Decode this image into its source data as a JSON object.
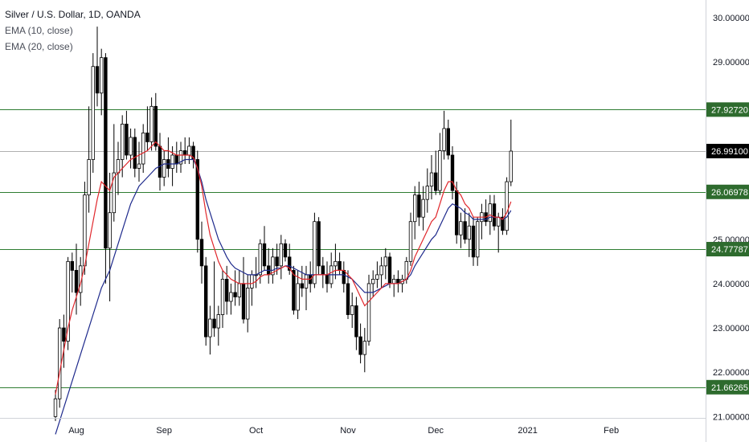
{
  "legend": {
    "title": "Silver / U.S. Dollar, 1D, OANDA",
    "ema10": "EMA (10, close)",
    "ema20": "EMA (20, close)"
  },
  "colors": {
    "up_fill": "#ffffff",
    "down_fill": "#000000",
    "candle_border": "#000000",
    "ema10": "#e0262b",
    "ema20": "#1e2a8c",
    "sr_line": "#2e7d32",
    "price_line": "#b0b0b0",
    "axis_text": "#131722",
    "label_green_bg": "#2e6b2e",
    "label_dark_bg": "#000000"
  },
  "chart_data": {
    "type": "candlestick",
    "symbol": "Silver / U.S. Dollar, 1D, OANDA",
    "indicators": [
      "EMA (10, close)",
      "EMA (20, close)"
    ],
    "ylim": [
      20.97,
      30.4
    ],
    "y_ticks": [
      "30.00000",
      "29.00000",
      "28.00000",
      "27.00000",
      "26.00000",
      "25.00000",
      "24.00000",
      "23.00000",
      "22.00000",
      "21.00000"
    ],
    "x_ticks": [
      {
        "label": "Aug",
        "index": 5
      },
      {
        "label": "Sep",
        "index": 26
      },
      {
        "label": "Oct",
        "index": 48
      },
      {
        "label": "Nov",
        "index": 70
      },
      {
        "label": "Dec",
        "index": 91
      },
      {
        "label": "2021",
        "index": 113
      },
      {
        "label": "Feb",
        "index": 133
      }
    ],
    "horizontal_levels": [
      {
        "value": 27.9272,
        "label": "27.92720",
        "style": "support-resistance"
      },
      {
        "value": 26.991,
        "label": "26.99100",
        "style": "last-price"
      },
      {
        "value": 26.06978,
        "label": "26.06978",
        "style": "support-resistance"
      },
      {
        "value": 24.77787,
        "label": "24.77787",
        "style": "support-resistance"
      },
      {
        "value": 21.66265,
        "label": "21.66265",
        "style": "support-resistance"
      }
    ],
    "candles": [
      {
        "o": 21.0,
        "h": 21.6,
        "l": 20.9,
        "c": 21.4
      },
      {
        "o": 21.4,
        "h": 23.2,
        "l": 21.2,
        "c": 23.0
      },
      {
        "o": 23.0,
        "h": 23.3,
        "l": 22.1,
        "c": 22.7
      },
      {
        "o": 22.7,
        "h": 24.6,
        "l": 22.5,
        "c": 24.5
      },
      {
        "o": 24.5,
        "h": 24.7,
        "l": 23.8,
        "c": 24.3
      },
      {
        "o": 24.3,
        "h": 24.9,
        "l": 23.3,
        "c": 23.8
      },
      {
        "o": 23.8,
        "h": 24.6,
        "l": 23.5,
        "c": 24.4
      },
      {
        "o": 24.4,
        "h": 26.3,
        "l": 24.2,
        "c": 26.0
      },
      {
        "o": 26.0,
        "h": 28.0,
        "l": 25.6,
        "c": 26.8
      },
      {
        "o": 26.8,
        "h": 29.2,
        "l": 26.5,
        "c": 28.9
      },
      {
        "o": 28.9,
        "h": 29.8,
        "l": 28.0,
        "c": 28.3
      },
      {
        "o": 28.3,
        "h": 29.3,
        "l": 27.8,
        "c": 29.1
      },
      {
        "o": 29.1,
        "h": 29.2,
        "l": 24.0,
        "c": 24.8
      },
      {
        "o": 24.8,
        "h": 26.5,
        "l": 23.6,
        "c": 25.6
      },
      {
        "o": 25.6,
        "h": 27.6,
        "l": 25.4,
        "c": 26.5
      },
      {
        "o": 26.5,
        "h": 27.2,
        "l": 26.0,
        "c": 26.8
      },
      {
        "o": 26.8,
        "h": 27.8,
        "l": 26.4,
        "c": 27.6
      },
      {
        "o": 27.6,
        "h": 27.9,
        "l": 26.8,
        "c": 26.9
      },
      {
        "o": 26.9,
        "h": 27.5,
        "l": 26.6,
        "c": 27.3
      },
      {
        "o": 27.3,
        "h": 27.5,
        "l": 26.4,
        "c": 26.6
      },
      {
        "o": 26.6,
        "h": 27.2,
        "l": 26.3,
        "c": 26.7
      },
      {
        "o": 26.7,
        "h": 27.6,
        "l": 26.5,
        "c": 27.4
      },
      {
        "o": 27.4,
        "h": 28.0,
        "l": 27.0,
        "c": 27.2
      },
      {
        "o": 27.2,
        "h": 28.2,
        "l": 27.0,
        "c": 28.0
      },
      {
        "o": 28.0,
        "h": 28.3,
        "l": 27.0,
        "c": 27.1
      },
      {
        "o": 27.1,
        "h": 27.4,
        "l": 26.1,
        "c": 26.4
      },
      {
        "o": 26.4,
        "h": 27.0,
        "l": 26.2,
        "c": 26.8
      },
      {
        "o": 26.8,
        "h": 27.3,
        "l": 26.4,
        "c": 26.6
      },
      {
        "o": 26.6,
        "h": 27.1,
        "l": 26.2,
        "c": 26.9
      },
      {
        "o": 26.9,
        "h": 27.2,
        "l": 26.5,
        "c": 26.7
      },
      {
        "o": 26.7,
        "h": 27.2,
        "l": 26.5,
        "c": 27.0
      },
      {
        "o": 27.0,
        "h": 27.3,
        "l": 26.7,
        "c": 26.9
      },
      {
        "o": 26.9,
        "h": 27.3,
        "l": 26.7,
        "c": 27.1
      },
      {
        "o": 27.1,
        "h": 27.2,
        "l": 26.6,
        "c": 26.8
      },
      {
        "o": 26.8,
        "h": 27.0,
        "l": 24.7,
        "c": 25.0
      },
      {
        "o": 25.0,
        "h": 25.4,
        "l": 24.0,
        "c": 24.4
      },
      {
        "o": 24.4,
        "h": 24.6,
        "l": 22.6,
        "c": 22.8
      },
      {
        "o": 22.8,
        "h": 23.5,
        "l": 22.4,
        "c": 23.2
      },
      {
        "o": 23.2,
        "h": 24.5,
        "l": 22.8,
        "c": 23.0
      },
      {
        "o": 23.0,
        "h": 23.5,
        "l": 22.6,
        "c": 23.3
      },
      {
        "o": 23.3,
        "h": 24.3,
        "l": 23.0,
        "c": 24.1
      },
      {
        "o": 24.1,
        "h": 24.4,
        "l": 23.3,
        "c": 23.6
      },
      {
        "o": 23.6,
        "h": 24.0,
        "l": 23.3,
        "c": 23.8
      },
      {
        "o": 23.8,
        "h": 24.3,
        "l": 23.5,
        "c": 23.7
      },
      {
        "o": 23.7,
        "h": 24.3,
        "l": 23.5,
        "c": 24.0
      },
      {
        "o": 24.0,
        "h": 24.6,
        "l": 23.1,
        "c": 23.2
      },
      {
        "o": 23.2,
        "h": 24.2,
        "l": 22.9,
        "c": 23.9
      },
      {
        "o": 23.9,
        "h": 24.3,
        "l": 23.5,
        "c": 24.2
      },
      {
        "o": 24.2,
        "h": 24.6,
        "l": 23.9,
        "c": 24.2
      },
      {
        "o": 24.2,
        "h": 25.0,
        "l": 24.0,
        "c": 24.9
      },
      {
        "o": 24.9,
        "h": 25.3,
        "l": 24.3,
        "c": 24.4
      },
      {
        "o": 24.4,
        "h": 24.8,
        "l": 24.0,
        "c": 24.2
      },
      {
        "o": 24.2,
        "h": 24.8,
        "l": 24.0,
        "c": 24.6
      },
      {
        "o": 24.6,
        "h": 24.9,
        "l": 24.2,
        "c": 24.4
      },
      {
        "o": 24.4,
        "h": 25.1,
        "l": 24.1,
        "c": 24.9
      },
      {
        "o": 24.9,
        "h": 25.0,
        "l": 24.5,
        "c": 24.6
      },
      {
        "o": 24.6,
        "h": 24.9,
        "l": 24.2,
        "c": 24.3
      },
      {
        "o": 24.3,
        "h": 24.4,
        "l": 23.3,
        "c": 23.4
      },
      {
        "o": 23.4,
        "h": 24.3,
        "l": 23.2,
        "c": 24.0
      },
      {
        "o": 24.0,
        "h": 24.4,
        "l": 23.7,
        "c": 23.9
      },
      {
        "o": 23.9,
        "h": 24.4,
        "l": 23.4,
        "c": 24.2
      },
      {
        "o": 24.2,
        "h": 24.5,
        "l": 23.8,
        "c": 24.0
      },
      {
        "o": 24.0,
        "h": 25.6,
        "l": 23.9,
        "c": 25.4
      },
      {
        "o": 25.4,
        "h": 25.5,
        "l": 24.2,
        "c": 24.4
      },
      {
        "o": 24.4,
        "h": 24.6,
        "l": 23.9,
        "c": 24.2
      },
      {
        "o": 24.2,
        "h": 24.5,
        "l": 23.8,
        "c": 24.0
      },
      {
        "o": 24.0,
        "h": 24.7,
        "l": 23.9,
        "c": 24.4
      },
      {
        "o": 24.4,
        "h": 24.9,
        "l": 24.1,
        "c": 24.5
      },
      {
        "o": 24.5,
        "h": 24.7,
        "l": 24.2,
        "c": 24.3
      },
      {
        "o": 24.3,
        "h": 24.5,
        "l": 23.8,
        "c": 24.0
      },
      {
        "o": 24.0,
        "h": 24.3,
        "l": 23.2,
        "c": 23.3
      },
      {
        "o": 23.3,
        "h": 23.8,
        "l": 23.0,
        "c": 23.5
      },
      {
        "o": 23.5,
        "h": 23.7,
        "l": 22.5,
        "c": 22.8
      },
      {
        "o": 22.8,
        "h": 23.1,
        "l": 22.2,
        "c": 22.4
      },
      {
        "o": 22.4,
        "h": 23.0,
        "l": 22.0,
        "c": 22.7
      },
      {
        "o": 22.7,
        "h": 24.2,
        "l": 22.6,
        "c": 24.0
      },
      {
        "o": 24.0,
        "h": 24.3,
        "l": 23.7,
        "c": 24.1
      },
      {
        "o": 24.1,
        "h": 24.5,
        "l": 23.9,
        "c": 24.2
      },
      {
        "o": 24.2,
        "h": 24.6,
        "l": 23.9,
        "c": 24.4
      },
      {
        "o": 24.4,
        "h": 24.8,
        "l": 24.1,
        "c": 24.6
      },
      {
        "o": 24.6,
        "h": 24.7,
        "l": 23.9,
        "c": 24.0
      },
      {
        "o": 24.0,
        "h": 24.2,
        "l": 23.7,
        "c": 24.1
      },
      {
        "o": 24.1,
        "h": 24.3,
        "l": 23.8,
        "c": 24.0
      },
      {
        "o": 24.0,
        "h": 24.2,
        "l": 23.8,
        "c": 24.1
      },
      {
        "o": 24.1,
        "h": 24.6,
        "l": 24.0,
        "c": 24.5
      },
      {
        "o": 24.5,
        "h": 25.6,
        "l": 24.4,
        "c": 25.4
      },
      {
        "o": 25.4,
        "h": 26.2,
        "l": 25.0,
        "c": 26.0
      },
      {
        "o": 26.0,
        "h": 26.3,
        "l": 25.3,
        "c": 25.5
      },
      {
        "o": 25.5,
        "h": 26.2,
        "l": 25.2,
        "c": 25.9
      },
      {
        "o": 25.9,
        "h": 26.6,
        "l": 25.6,
        "c": 26.2
      },
      {
        "o": 26.2,
        "h": 26.9,
        "l": 25.9,
        "c": 26.5
      },
      {
        "o": 26.5,
        "h": 27.0,
        "l": 26.0,
        "c": 26.1
      },
      {
        "o": 26.1,
        "h": 27.4,
        "l": 26.0,
        "c": 27.0
      },
      {
        "o": 27.0,
        "h": 27.9,
        "l": 26.8,
        "c": 27.5
      },
      {
        "o": 27.5,
        "h": 27.7,
        "l": 26.8,
        "c": 26.9
      },
      {
        "o": 26.9,
        "h": 27.1,
        "l": 25.9,
        "c": 26.1
      },
      {
        "o": 26.1,
        "h": 26.3,
        "l": 24.9,
        "c": 25.1
      },
      {
        "o": 25.1,
        "h": 25.6,
        "l": 24.8,
        "c": 25.4
      },
      {
        "o": 25.4,
        "h": 25.7,
        "l": 24.9,
        "c": 25.0
      },
      {
        "o": 25.0,
        "h": 25.6,
        "l": 24.6,
        "c": 25.3
      },
      {
        "o": 25.3,
        "h": 25.5,
        "l": 24.4,
        "c": 24.6
      },
      {
        "o": 24.6,
        "h": 25.5,
        "l": 24.4,
        "c": 25.4
      },
      {
        "o": 25.4,
        "h": 25.8,
        "l": 25.0,
        "c": 25.6
      },
      {
        "o": 25.6,
        "h": 25.9,
        "l": 25.3,
        "c": 25.4
      },
      {
        "o": 25.4,
        "h": 26.0,
        "l": 25.1,
        "c": 25.8
      },
      {
        "o": 25.8,
        "h": 26.0,
        "l": 25.2,
        "c": 25.3
      },
      {
        "o": 25.3,
        "h": 25.6,
        "l": 24.7,
        "c": 25.5
      },
      {
        "o": 25.5,
        "h": 25.7,
        "l": 25.1,
        "c": 25.2
      },
      {
        "o": 25.2,
        "h": 26.4,
        "l": 25.1,
        "c": 26.3
      },
      {
        "o": 26.3,
        "h": 27.7,
        "l": 26.2,
        "c": 26.99
      }
    ],
    "ema10": [
      21.5,
      22.0,
      22.5,
      23.0,
      23.4,
      23.7,
      24.0,
      24.4,
      24.9,
      25.4,
      25.9,
      26.3,
      26.2,
      26.1,
      26.4,
      26.5,
      26.6,
      26.7,
      26.8,
      26.85,
      26.9,
      26.95,
      27.0,
      27.1,
      27.2,
      27.1,
      27.0,
      27.0,
      26.95,
      26.9,
      26.9,
      26.9,
      26.9,
      26.85,
      26.6,
      26.2,
      25.6,
      25.1,
      24.8,
      24.5,
      24.3,
      24.2,
      24.1,
      24.05,
      24.0,
      24.0,
      24.0,
      24.0,
      24.05,
      24.15,
      24.2,
      24.2,
      24.25,
      24.3,
      24.35,
      24.4,
      24.35,
      24.2,
      24.15,
      24.1,
      24.1,
      24.1,
      24.2,
      24.2,
      24.2,
      24.2,
      24.25,
      24.3,
      24.3,
      24.3,
      24.2,
      24.1,
      23.9,
      23.7,
      23.5,
      23.6,
      23.7,
      23.8,
      23.9,
      24.0,
      24.0,
      24.0,
      24.0,
      24.05,
      24.1,
      24.3,
      24.6,
      24.8,
      25.0,
      25.2,
      25.4,
      25.5,
      25.8,
      26.1,
      26.3,
      26.3,
      26.1,
      26.0,
      25.8,
      25.7,
      25.5,
      25.5,
      25.5,
      25.5,
      25.55,
      25.5,
      25.5,
      25.45,
      25.6,
      25.85
    ],
    "ema20": [
      20.6,
      20.9,
      21.2,
      21.5,
      21.8,
      22.1,
      22.4,
      22.7,
      23.0,
      23.3,
      23.6,
      23.9,
      24.1,
      24.3,
      24.6,
      24.9,
      25.2,
      25.5,
      25.8,
      26.0,
      26.2,
      26.3,
      26.4,
      26.5,
      26.6,
      26.65,
      26.7,
      26.7,
      26.7,
      26.7,
      26.75,
      26.8,
      26.8,
      26.8,
      26.6,
      26.3,
      25.9,
      25.6,
      25.3,
      25.0,
      24.8,
      24.6,
      24.45,
      24.35,
      24.3,
      24.25,
      24.2,
      24.2,
      24.2,
      24.25,
      24.3,
      24.3,
      24.3,
      24.35,
      24.35,
      24.4,
      24.4,
      24.35,
      24.3,
      24.25,
      24.2,
      24.2,
      24.2,
      24.2,
      24.2,
      24.2,
      24.2,
      24.2,
      24.2,
      24.2,
      24.15,
      24.1,
      24.0,
      23.9,
      23.8,
      23.8,
      23.8,
      23.85,
      23.9,
      23.95,
      24.0,
      24.0,
      24.0,
      24.05,
      24.1,
      24.2,
      24.4,
      24.55,
      24.7,
      24.85,
      25.0,
      25.1,
      25.3,
      25.5,
      25.7,
      25.8,
      25.75,
      25.7,
      25.6,
      25.55,
      25.45,
      25.45,
      25.45,
      25.45,
      25.5,
      25.5,
      25.5,
      25.45,
      25.5,
      25.65
    ]
  }
}
